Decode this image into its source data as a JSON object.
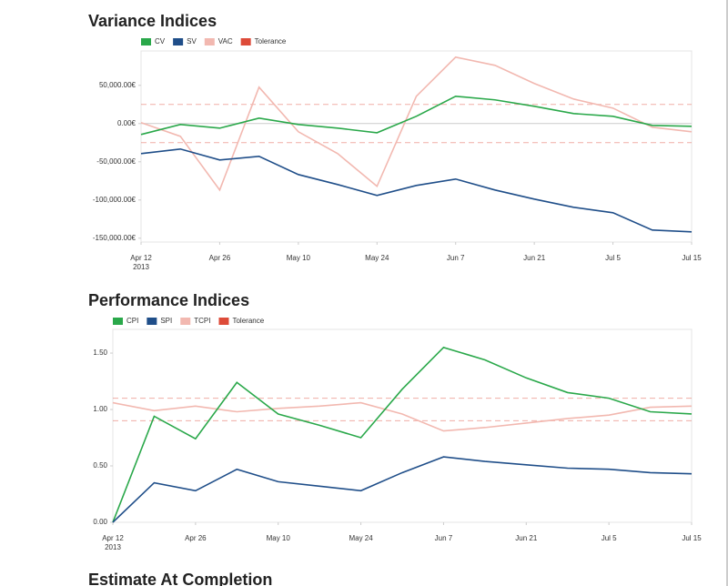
{
  "chart_data": [
    {
      "type": "line",
      "title": "Variance Indices",
      "categories": [
        "Apr 12",
        null,
        "Apr 26",
        null,
        "May 10",
        null,
        "May 24",
        null,
        "Jun 7",
        null,
        "Jun 21",
        null,
        "Jul 5",
        null,
        "Jul 15"
      ],
      "year_label": "2013",
      "ylim": [
        -155000,
        95000
      ],
      "yticks": [
        {
          "value": -150000,
          "label": "-150,000.00€"
        },
        {
          "value": -100000,
          "label": "-100,000.00€"
        },
        {
          "value": -50000,
          "label": "-50,000.00€"
        },
        {
          "value": 0,
          "label": "0.00€"
        },
        {
          "value": 50000,
          "label": "50,000.00€"
        }
      ],
      "zero_line": true,
      "series": [
        {
          "name": "CV",
          "color": "#2aa84a",
          "values": [
            -14300,
            -1200,
            -6000,
            7100,
            -1200,
            -6000,
            -12000,
            9500,
            35700,
            31000,
            22600,
            13100,
            9500,
            -2400,
            -3600
          ]
        },
        {
          "name": "SV",
          "color": "#1f4e89",
          "values": [
            -39300,
            -33300,
            -47600,
            -42900,
            -66700,
            -79800,
            -94000,
            -81000,
            -72600,
            -86900,
            -98800,
            -109500,
            -116700,
            -139300,
            -141700
          ]
        },
        {
          "name": "VAC",
          "color": "#f2b8b0",
          "values": [
            1200,
            -16700,
            -86900,
            47600,
            -10700,
            -39300,
            -82100,
            35700,
            86900,
            76200,
            52400,
            32100,
            20200,
            -4800,
            -10700
          ]
        }
      ],
      "tolerance": {
        "name": "Tolerance",
        "color": "#dd4b39",
        "values": [
          25000,
          -25000
        ]
      }
    },
    {
      "type": "line",
      "title": "Performance Indices",
      "categories": [
        "Apr 12",
        null,
        "Apr 26",
        null,
        "May 10",
        null,
        "May 24",
        null,
        "Jun 7",
        null,
        "Jun 21",
        null,
        "Jul 5",
        null,
        "Jul 15"
      ],
      "year_label": "2013",
      "ylim": [
        0,
        1.71
      ],
      "yticks": [
        {
          "value": 0,
          "label": "0.00"
        },
        {
          "value": 0.5,
          "label": "0.50"
        },
        {
          "value": 1,
          "label": "1.00"
        },
        {
          "value": 1.5,
          "label": "1.50"
        }
      ],
      "zero_line": false,
      "series": [
        {
          "name": "CPI",
          "color": "#2aa84a",
          "values": [
            0,
            0.94,
            0.74,
            1.24,
            0.96,
            0.86,
            0.75,
            1.18,
            1.55,
            1.44,
            1.28,
            1.15,
            1.1,
            0.98,
            0.96
          ]
        },
        {
          "name": "SPI",
          "color": "#1f4e89",
          "values": [
            0,
            0.35,
            0.28,
            0.47,
            0.36,
            0.32,
            0.28,
            0.44,
            0.58,
            0.54,
            0.51,
            0.48,
            0.47,
            0.44,
            0.43
          ]
        },
        {
          "name": "TCPI",
          "color": "#f2b8b0",
          "values": [
            1.06,
            0.99,
            1.03,
            0.98,
            1.01,
            1.03,
            1.06,
            0.96,
            0.81,
            0.84,
            0.88,
            0.92,
            0.95,
            1.02,
            1.03
          ]
        }
      ],
      "tolerance": {
        "name": "Tolerance",
        "color": "#dd4b39",
        "values": [
          1.1,
          0.9
        ]
      }
    },
    {
      "type": "line",
      "title": "Estimate At Completion"
    }
  ]
}
